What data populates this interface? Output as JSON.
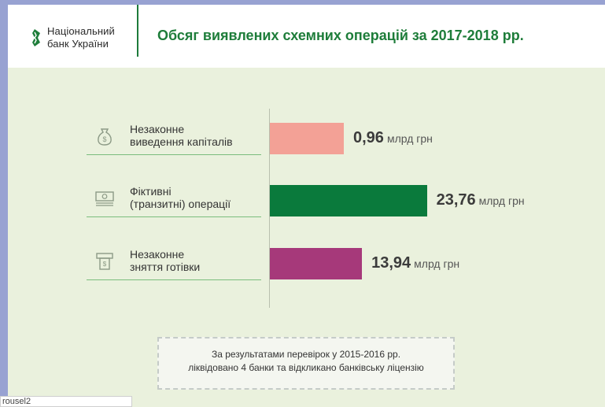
{
  "header": {
    "logo_line1": "Національний",
    "logo_line2": "банк України",
    "title": "Обсяг виявлених схемних операцій за 2017-2018 рр."
  },
  "colors": {
    "brand_green": "#1e7d3a",
    "bar_capital": "#f3a196",
    "bar_fictitious": "#0a7a3c",
    "bar_cash": "#a6397a",
    "background": "#eaf1dd"
  },
  "chart_data": {
    "type": "bar",
    "orientation": "horizontal",
    "unit": "млрд грн",
    "categories": [
      {
        "line1": "Незаконне",
        "line2": "виведення капіталів",
        "icon": "money-bag-icon"
      },
      {
        "line1": "Фіктивні",
        "line2": "(транзитні) операції",
        "icon": "banknote-icon"
      },
      {
        "line1": "Незаконне",
        "line2": "зняття готівки",
        "icon": "atm-icon"
      }
    ],
    "values": [
      0.96,
      23.76,
      13.94
    ],
    "value_labels": [
      "0,96",
      "23,76",
      "13,94"
    ]
  },
  "note": {
    "line1": "За результатами перевірок у 2015-2016 рр.",
    "line2": "ліквідовано 4 банки та відкликано банківську ліцензію"
  },
  "status_bar": {
    "text": "rousel2"
  }
}
